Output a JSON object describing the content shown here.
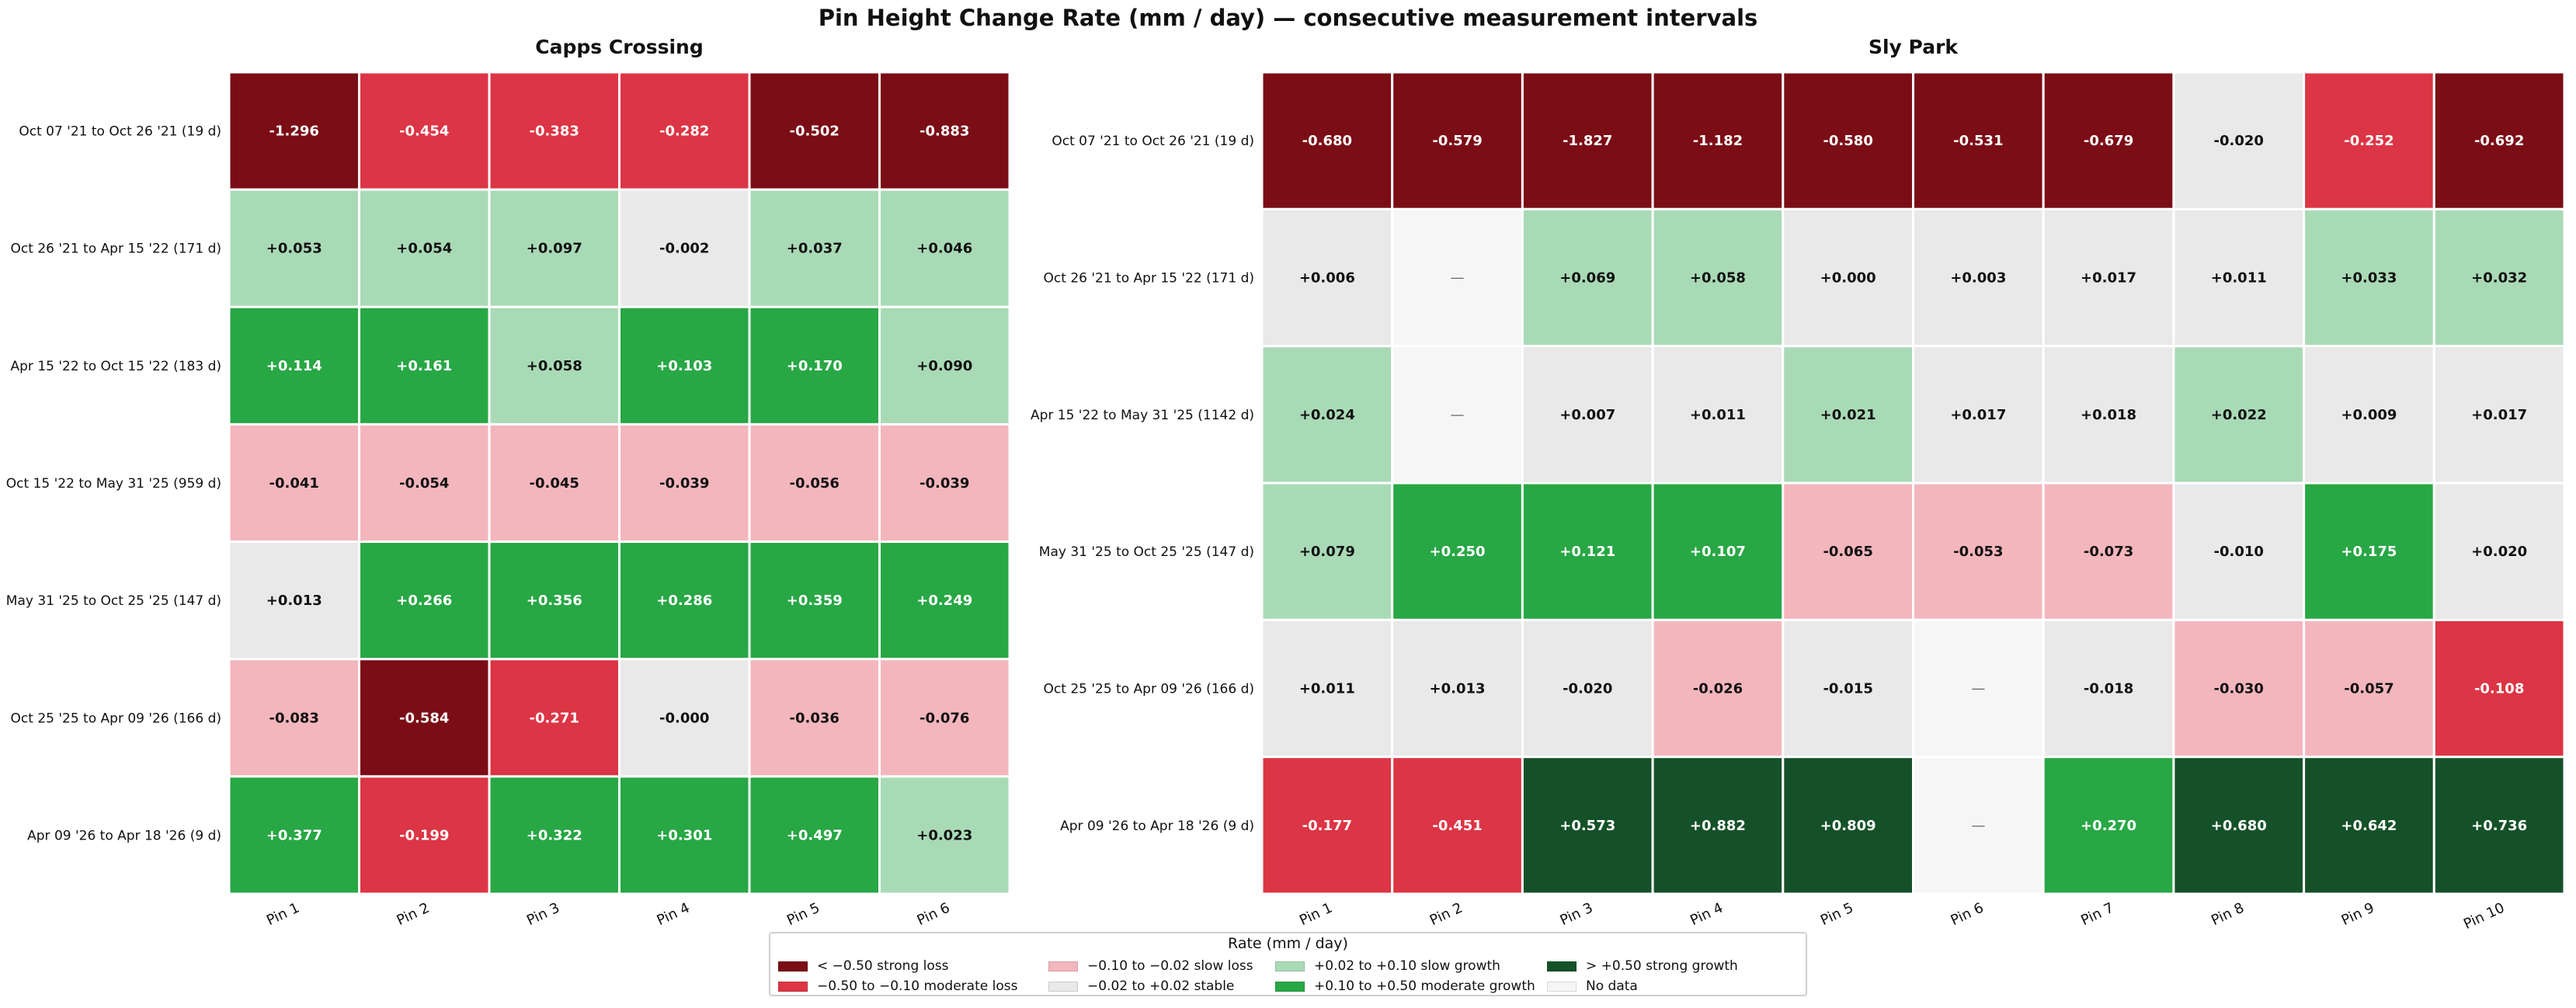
{
  "title": "Pin Height Change Rate (mm / day) — consecutive measurement intervals",
  "legend": {
    "title": "Rate (mm / day)",
    "items": [
      {
        "label": "< −0.50  strong loss",
        "color": "#7b0d16"
      },
      {
        "label": "−0.50 to −0.10  moderate loss",
        "color": "#dc3545"
      },
      {
        "label": "−0.10 to −0.02  slow loss",
        "color": "#f4b6bd"
      },
      {
        "label": "−0.02 to +0.02  stable",
        "color": "#e9e9e9"
      },
      {
        "label": "+0.02 to +0.10  slow growth",
        "color": "#a9dab6"
      },
      {
        "label": "+0.10 to +0.50  moderate growth",
        "color": "#28a745"
      },
      {
        "label": "> +0.50  strong growth",
        "color": "#155128"
      },
      {
        "label": "No data",
        "color": "#f6f6f6"
      }
    ]
  },
  "chart_data": [
    {
      "type": "heatmap",
      "title": "Capps Crossing",
      "columns": [
        "Pin 1",
        "Pin 2",
        "Pin 3",
        "Pin 4",
        "Pin 5",
        "Pin 6"
      ],
      "rows": [
        "Oct 07 '21 to Oct 26 '21 (19 d)",
        "Oct 26 '21 to Apr 15 '22 (171 d)",
        "Apr 15 '22 to Oct 15 '22 (183 d)",
        "Oct 15 '22 to May 31 '25 (959 d)",
        "May 31 '25 to Oct 25 '25 (147 d)",
        "Oct 25 '25 to Apr 09 '26 (166 d)",
        "Apr 09 '26 to Apr 18 '26 (9 d)"
      ],
      "values": [
        [
          -1.296,
          -0.454,
          -0.383,
          -0.282,
          -0.502,
          -0.883
        ],
        [
          0.053,
          0.054,
          0.097,
          -0.002,
          0.037,
          0.046
        ],
        [
          0.114,
          0.161,
          0.058,
          0.103,
          0.17,
          0.09
        ],
        [
          -0.041,
          -0.054,
          -0.045,
          -0.039,
          -0.056,
          -0.039
        ],
        [
          0.013,
          0.266,
          0.356,
          0.286,
          0.359,
          0.249
        ],
        [
          -0.083,
          -0.584,
          -0.271,
          -0.0,
          -0.036,
          -0.076
        ],
        [
          0.377,
          -0.199,
          0.322,
          0.301,
          0.497,
          0.023
        ]
      ],
      "labels": [
        [
          "-1.296",
          "-0.454",
          "-0.383",
          "-0.282",
          "-0.502",
          "-0.883"
        ],
        [
          "+0.053",
          "+0.054",
          "+0.097",
          "-0.002",
          "+0.037",
          "+0.046"
        ],
        [
          "+0.114",
          "+0.161",
          "+0.058",
          "+0.103",
          "+0.170",
          "+0.090"
        ],
        [
          "-0.041",
          "-0.054",
          "-0.045",
          "-0.039",
          "-0.056",
          "-0.039"
        ],
        [
          "+0.013",
          "+0.266",
          "+0.356",
          "+0.286",
          "+0.359",
          "+0.249"
        ],
        [
          "-0.083",
          "-0.584",
          "-0.271",
          "-0.000",
          "-0.036",
          "-0.076"
        ],
        [
          "+0.377",
          "-0.199",
          "+0.322",
          "+0.301",
          "+0.497",
          "+0.023"
        ]
      ]
    },
    {
      "type": "heatmap",
      "title": "Sly Park",
      "columns": [
        "Pin 1",
        "Pin 2",
        "Pin 3",
        "Pin 4",
        "Pin 5",
        "Pin 6",
        "Pin 7",
        "Pin 8",
        "Pin 9",
        "Pin 10"
      ],
      "rows": [
        "Oct 07 '21 to Oct 26 '21 (19 d)",
        "Oct 26 '21 to Apr 15 '22 (171 d)",
        "Apr 15 '22 to May 31 '25 (1142 d)",
        "May 31 '25 to Oct 25 '25 (147 d)",
        "Oct 25 '25 to Apr 09 '26 (166 d)",
        "Apr 09 '26 to Apr 18 '26 (9 d)"
      ],
      "values": [
        [
          -0.68,
          -0.579,
          -1.827,
          -1.182,
          -0.58,
          -0.531,
          -0.679,
          -0.02,
          -0.252,
          -0.692
        ],
        [
          0.006,
          null,
          0.069,
          0.058,
          0.0,
          0.003,
          0.017,
          0.011,
          0.033,
          0.032
        ],
        [
          0.024,
          null,
          0.007,
          0.011,
          0.021,
          0.017,
          0.018,
          0.022,
          0.009,
          0.017
        ],
        [
          0.079,
          0.25,
          0.121,
          0.107,
          -0.065,
          -0.053,
          -0.073,
          -0.01,
          0.175,
          0.02
        ],
        [
          0.011,
          0.013,
          -0.02,
          -0.026,
          -0.015,
          null,
          -0.018,
          -0.03,
          -0.057,
          -0.108
        ],
        [
          -0.177,
          -0.451,
          0.573,
          0.882,
          0.809,
          null,
          0.27,
          0.68,
          0.642,
          0.736
        ]
      ],
      "labels": [
        [
          "-0.680",
          "-0.579",
          "-1.827",
          "-1.182",
          "-0.580",
          "-0.531",
          "-0.679",
          "-0.020",
          "-0.252",
          "-0.692"
        ],
        [
          "+0.006",
          "—",
          "+0.069",
          "+0.058",
          "+0.000",
          "+0.003",
          "+0.017",
          "+0.011",
          "+0.033",
          "+0.032"
        ],
        [
          "+0.024",
          "—",
          "+0.007",
          "+0.011",
          "+0.021",
          "+0.017",
          "+0.018",
          "+0.022",
          "+0.009",
          "+0.017"
        ],
        [
          "+0.079",
          "+0.250",
          "+0.121",
          "+0.107",
          "-0.065",
          "-0.053",
          "-0.073",
          "-0.010",
          "+0.175",
          "+0.020"
        ],
        [
          "+0.011",
          "+0.013",
          "-0.020",
          "-0.026",
          "-0.015",
          "—",
          "-0.018",
          "-0.030",
          "-0.057",
          "-0.108"
        ],
        [
          "-0.177",
          "-0.451",
          "+0.573",
          "+0.882",
          "+0.809",
          "—",
          "+0.270",
          "+0.680",
          "+0.642",
          "+0.736"
        ]
      ]
    }
  ]
}
